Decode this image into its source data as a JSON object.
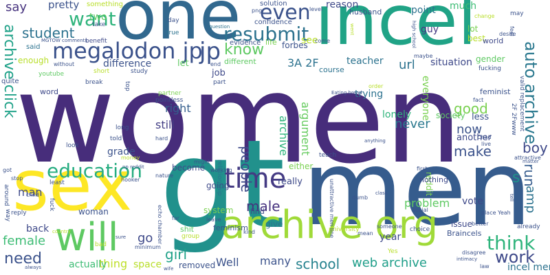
{
  "words": {
    "women": {
      "text": "women",
      "color": "#472d7b"
    },
    "men": {
      "text": "men",
      "color": "#365c8d"
    },
    "sex": {
      "text": "sex",
      "color": "#fde725"
    },
    "gt": {
      "text": "gt",
      "color": "#21918c"
    },
    "incel": {
      "text": "incel",
      "color": "#20a386"
    },
    "one": {
      "text": "one",
      "color": "#31688e"
    },
    "archive_org": {
      "text": "archive org",
      "color": "#a0da39"
    },
    "will": {
      "text": "will",
      "color": "#5ec962"
    },
    "time": {
      "text": "time",
      "color": "#443a83"
    },
    "megalodon_jp": {
      "text": "megalodon jp",
      "color": "#3b528b"
    },
    "resubmit": {
      "text": "resubmit",
      "color": "#2c728e"
    },
    "even": {
      "text": "even",
      "color": "#3b528b"
    },
    "want": {
      "text": "want",
      "color": "#2fb47c"
    },
    "know": {
      "text": "know",
      "color": "#5ec962"
    },
    "education": {
      "text": "education",
      "color": "#27ad81"
    },
    "think": {
      "text": "think",
      "color": "#2fb47c"
    },
    "work": {
      "text": "work",
      "color": "#3e4989"
    },
    "auto_archive": {
      "text": "auto archive",
      "color": "#2a788e"
    },
    "archive_click": {
      "text": "archive click",
      "color": "#1fa188"
    },
    "people": {
      "text": "people",
      "color": "#3e4989"
    },
    "make": {
      "text": "make",
      "color": "#3b528b"
    },
    "good": {
      "text": "good",
      "color": "#7ad151"
    },
    "boy": {
      "text": "boy",
      "color": "#3e4989"
    },
    "run": {
      "text": "run",
      "color": "#365c8d"
    },
    "amp": {
      "text": "amp",
      "color": "#2c728e"
    },
    "s": {
      "text": "s",
      "color": "#21918c"
    },
    "need": {
      "text": "need",
      "color": "#3b528b"
    },
    "girl": {
      "text": "girl",
      "color": "#1fa188"
    },
    "male": {
      "text": "male",
      "color": "#46327e"
    },
    "web_archive": {
      "text": "web archive",
      "color": "#1f9e89"
    },
    "school": {
      "text": "school",
      "color": "#26828e"
    },
    "never": {
      "text": "never",
      "color": "#2a788e"
    },
    "now": {
      "text": "now",
      "color": "#3b528b"
    },
    "url": {
      "text": "url",
      "color": "#2c728e"
    },
    "student": {
      "text": "student",
      "color": "#2c728e"
    },
    "right": {
      "text": "right",
      "color": "#355f8d"
    },
    "still": {
      "text": "still",
      "color": "#433e85"
    },
    "argument": {
      "text": "argument",
      "color": "#65cb5e"
    },
    "archive_v": {
      "text": "archive",
      "color": "#2fb47c"
    },
    "problem": {
      "text": "problem",
      "color": "#5ec962"
    },
    "female": {
      "text": "female",
      "color": "#3dbc74"
    },
    "go": {
      "text": "go",
      "color": "#3e4989"
    },
    "Well": {
      "text": "Well",
      "color": "#3b528b"
    },
    "many": {
      "text": "many",
      "color": "#3b528b"
    },
    "thing": {
      "text": "thing",
      "color": "#bddf26"
    },
    "man": {
      "text": "man",
      "color": "#3e4989"
    },
    "3A_2F": {
      "text": "3A 2F",
      "color": "#2c728e"
    },
    "jp_big": {
      "text": "jp",
      "color": "#3b528b"
    },
    "pretty": {
      "text": "pretty",
      "color": "#3b528b"
    },
    "say": {
      "text": "say",
      "color": "#46327e"
    },
    "two": {
      "text": "two",
      "color": "#5ec962"
    },
    "reason": {
      "text": "reason",
      "color": "#3e4989"
    },
    "point": {
      "text": "point",
      "color": "#2c728e"
    },
    "much": {
      "text": "much",
      "color": "#3dbc74"
    },
    "guy": {
      "text": "guy",
      "color": "#443983"
    },
    "situation": {
      "text": "situation",
      "color": "#3e4989"
    },
    "teacher": {
      "text": "teacher",
      "color": "#2c728e"
    },
    "difference": {
      "text": "difference",
      "color": "#3b528b"
    },
    "let": {
      "text": "let",
      "color": "#5ec962"
    },
    "job": {
      "text": "job",
      "color": "#3e4989"
    },
    "different": {
      "text": "different",
      "color": "#5ec962"
    },
    "see": {
      "text": "see",
      "color": "#b8de29"
    },
    "forbes": {
      "text": "forbes",
      "color": "#3b528b"
    },
    "course": {
      "text": "course",
      "color": "#2c728e"
    },
    "trying": {
      "text": "trying",
      "color": "#2c728e"
    },
    "lonely": {
      "text": "lonely",
      "color": "#2fb47c"
    },
    "everyone": {
      "text": "everyone",
      "color": "#7ad151"
    },
    "another": {
      "text": "another",
      "color": "#3e4989"
    },
    "less": {
      "text": "less",
      "color": "#3b528b"
    },
    "society": {
      "text": "society",
      "color": "#5ec962"
    },
    "become": {
      "text": "become",
      "color": "#3e4989"
    },
    "grade": {
      "text": "grade",
      "color": "#3b528b"
    },
    "going": {
      "text": "going",
      "color": "#3e4989"
    },
    "really": {
      "text": "really",
      "color": "#3e4989"
    },
    "either": {
      "text": "either",
      "color": "#7ad151"
    },
    "vote": {
      "text": "vote",
      "color": "#3e4989"
    },
    "woman": {
      "text": "woman",
      "color": "#3b528b"
    },
    "back": {
      "text": "back",
      "color": "#3e4989"
    },
    "year": {
      "text": "year",
      "color": "#3e4989"
    },
    "actually": {
      "text": "actually",
      "color": "#3dbc74"
    },
    "space": {
      "text": "space",
      "color": "#b8de29"
    },
    "removed": {
      "text": "removed",
      "color": "#3b528b"
    },
    "give": {
      "text": "give",
      "color": "#2c728e"
    },
    "system": {
      "text": "system",
      "color": "#7ad151"
    },
    "find": {
      "text": "find",
      "color": "#3e4989"
    },
    "issue": {
      "text": "issue",
      "color": "#3e4989"
    },
    "Braincels": {
      "text": "Braincels",
      "color": "#3b528b"
    },
    "incel_men": {
      "text": "incel men",
      "color": "#2c728e"
    },
    "gender": {
      "text": "gender",
      "color": "#5ec962"
    },
    "lot": {
      "text": "lot",
      "color": "#7ad151"
    },
    "best": {
      "text": "best",
      "color": "#b8de29"
    },
    "world": {
      "text": "world",
      "color": "#3e4989"
    },
    "feminist": {
      "text": "feminist",
      "color": "#3b528b"
    },
    "feminism": {
      "text": "feminism",
      "color": "#3b528b"
    },
    "reddit": {
      "text": "reddit",
      "color": "#7ad151"
    },
    "nothing": {
      "text": "nothing",
      "color": "#3e4989"
    },
    "something": {
      "text": "something",
      "color": "#b8de29"
    },
    "solution": {
      "text": "solution",
      "color": "#3b528b"
    },
    "confidence": {
      "text": "confidence",
      "color": "#3b528b"
    },
    "husband": {
      "text": "husband",
      "color": "#3b528b"
    },
    "life": {
      "text": "life",
      "color": "#7ad151"
    },
    "evidence": {
      "text": "evidence",
      "color": "#3b528b"
    },
    "enough": {
      "text": "enough",
      "color": "#b8de29"
    },
    "said": {
      "text": "said",
      "color": "#2c728e"
    },
    "word": {
      "text": "word",
      "color": "#3e4989"
    },
    "quite": {
      "text": "quite",
      "color": "#3b528b"
    },
    "youtube": {
      "text": "youtube",
      "color": "#5ec962"
    },
    "short": {
      "text": "short",
      "color": "#b8de29"
    },
    "study": {
      "text": "study",
      "color": "#3b528b"
    },
    "break": {
      "text": "break",
      "color": "#3b528b"
    },
    "take": {
      "text": "take",
      "color": "#3b528b"
    },
    "benefit": {
      "text": "benefit",
      "color": "#3e4989"
    },
    "MGTOW_comments": {
      "text": "MGTOW comments",
      "color": "#3b528b"
    },
    "without": {
      "text": "without",
      "color": "#3b528b"
    },
    "day": {
      "text": "day",
      "color": "#3b528b"
    },
    "true": {
      "text": "true",
      "color": "#2c728e"
    },
    "question": {
      "text": "question",
      "color": "#2c728e"
    },
    "end": {
      "text": "end",
      "color": "#3b528b"
    },
    "part": {
      "text": "part",
      "color": "#3b528b"
    },
    "partner": {
      "text": "partner",
      "color": "#7ad151"
    },
    "pointless": {
      "text": "pointless",
      "color": "#3b528b"
    },
    "top": {
      "text": "top",
      "color": "#3b528b"
    },
    "long": {
      "text": "long",
      "color": "#3b528b"
    },
    "told": {
      "text": "told",
      "color": "#3b528b"
    },
    "hard": {
      "text": "hard",
      "color": "#3b528b"
    },
    "look": {
      "text": "look",
      "color": "#3b528b"
    },
    "money": {
      "text": "money",
      "color": "#b8de29"
    },
    "np_reddit": {
      "text": "np reddit",
      "color": "#3b528b"
    },
    "hooker": {
      "text": "hooker",
      "color": "#3b528b"
    },
    "nature": {
      "text": "nature",
      "color": "#3b528b"
    },
    "might": {
      "text": "might",
      "color": "#3b528b"
    },
    "working": {
      "text": "working",
      "color": "#3b528b"
    },
    "relationship": {
      "text": "relationship",
      "color": "#2c728e"
    },
    "Eating_bread": {
      "text": "Eating bread",
      "color": "#3b528b"
    },
    "order": {
      "text": "order",
      "color": "#b8de29"
    },
    "fact": {
      "text": "fact",
      "color": "#3b528b"
    },
    "Chad": {
      "text": "Chad",
      "color": "#3b528b"
    },
    "live": {
      "text": "live",
      "color": "#3b528b"
    },
    "anything": {
      "text": "anything",
      "color": "#3b528b"
    },
    "first": {
      "text": "first",
      "color": "#3b528b"
    },
    "teach": {
      "text": "teach",
      "color": "#3b528b"
    },
    "2F_2Fwww": {
      "text": "2F 2Fwww",
      "color": "#3b528b"
    },
    "valid_replacement": {
      "text": "valid replacement",
      "color": "#3b528b"
    },
    "attractive": {
      "text": "attractive",
      "color": "#3b528b"
    },
    "matter": {
      "text": "matter",
      "color": "#3b528b"
    },
    "stop": {
      "text": "stop",
      "color": "#3b528b"
    },
    "got": {
      "text": "got",
      "color": "#3b528b"
    },
    "around": {
      "text": "around",
      "color": "#3b528b"
    },
    "way": {
      "text": "way",
      "color": "#3b528b"
    },
    "child": {
      "text": "child",
      "color": "#3b528b"
    },
    "fuck": {
      "text": "fuck",
      "color": "#3b528b"
    },
    "reply": {
      "text": "reply",
      "color": "#3b528b"
    },
    "least": {
      "text": "least",
      "color": "#3b528b"
    },
    "country": {
      "text": "country",
      "color": "#b8de29"
    },
    "always": {
      "text": "always",
      "color": "#3b528b"
    },
    "bad": {
      "text": "bad",
      "color": "#b8de29"
    },
    "sure": {
      "text": "sure",
      "color": "#3b528b"
    },
    "minimum": {
      "text": "minimum",
      "color": "#3b528b"
    },
    "wife": {
      "text": "wife",
      "color": "#3b528b"
    },
    "far": {
      "text": "far",
      "color": "#3b528b"
    },
    "echo_chamber": {
      "text": "echo chamber",
      "color": "#3b528b"
    },
    "shit": {
      "text": "shit",
      "color": "#5ec962"
    },
    "group": {
      "text": "group",
      "color": "#b8de29"
    },
    "kind": {
      "text": "kind",
      "color": "#3b528b"
    },
    "leave": {
      "text": "leave",
      "color": "#3b528b"
    },
    "university": {
      "text": "university",
      "color": "#b8de29"
    },
    "unattractive_men_line": {
      "text": "unattractive men line",
      "color": "#3b528b"
    },
    "dumb": {
      "text": "dumb",
      "color": "#3b528b"
    },
    "class": {
      "text": "class",
      "color": "#3b528b"
    },
    "mean": {
      "text": "mean",
      "color": "#3b528b"
    },
    "someone": {
      "text": "someone",
      "color": "#3b528b"
    },
    "choice": {
      "text": "choice",
      "color": "#3b528b"
    },
    "Yes": {
      "text": "Yes",
      "color": "#b8de29"
    },
    "social": {
      "text": "social",
      "color": "#3b528b"
    },
    "place": {
      "text": "place",
      "color": "#3b528b"
    },
    "better": {
      "text": "better",
      "color": "#3b528b"
    },
    "Yeah": {
      "text": "Yeah",
      "color": "#3b528b"
    },
    "already": {
      "text": "already",
      "color": "#3b528b"
    },
    "disagree": {
      "text": "disagree",
      "color": "#3b528b"
    },
    "intimacy": {
      "text": "intimacy",
      "color": "#3b528b"
    },
    "law": {
      "text": "law",
      "color": "#3b528b"
    },
    "fucking": {
      "text": "fucking",
      "color": "#3b528b"
    },
    "desire": {
      "text": "desire",
      "color": "#3b528b"
    },
    "feel": {
      "text": "feel",
      "color": "#3b528b"
    },
    "change": {
      "text": "change",
      "color": "#b8de29"
    },
    "may": {
      "text": "may",
      "color": "#3b528b"
    },
    "maybe": {
      "text": "maybe",
      "color": "#3b528b"
    },
    "high_school": {
      "text": "high school",
      "color": "#3b528b"
    },
    "level": {
      "text": "level",
      "color": "#3b528b"
    },
    "come": {
      "text": "come",
      "color": "#3b528b"
    },
    "png": {
      "text": "png",
      "color": "#3b528b"
    },
    "went": {
      "text": "went",
      "color": "#b8de29"
    },
    "tell": {
      "text": "tell",
      "color": "#3b528b"
    },
    "able": {
      "text": "able",
      "color": "#3b528b"
    },
    "give_up": {
      "text": "nothing",
      "color": "#3b528b"
    }
  }
}
